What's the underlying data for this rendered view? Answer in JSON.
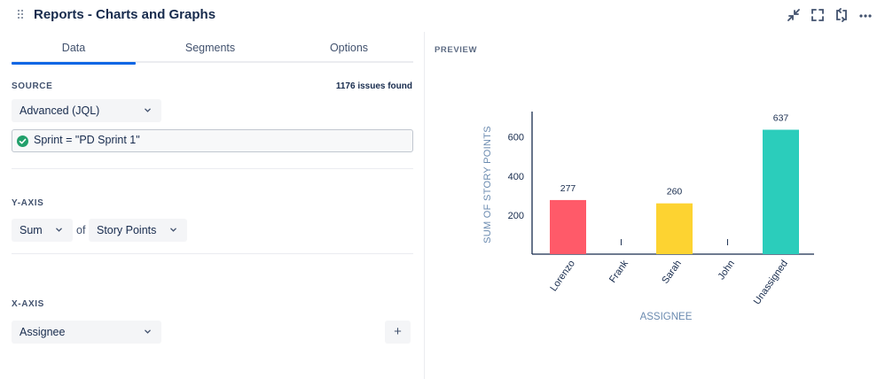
{
  "header": {
    "title": "Reports - Charts and Graphs",
    "icons": [
      "collapse-icon",
      "fullscreen-icon",
      "refresh-icon",
      "more-icon"
    ]
  },
  "tabs": [
    {
      "label": "Data",
      "active": true
    },
    {
      "label": "Segments",
      "active": false
    },
    {
      "label": "Options",
      "active": false
    }
  ],
  "source": {
    "label": "SOURCE",
    "issues_found": "1176 issues found",
    "selected": "Advanced (JQL)",
    "jql": "Sprint = \"PD Sprint 1\""
  },
  "y_axis": {
    "label": "Y-AXIS",
    "aggregate": "Sum",
    "of_text": "of",
    "field": "Story Points"
  },
  "x_axis": {
    "label": "X-AXIS",
    "field": "Assignee",
    "add_button": "+"
  },
  "preview": {
    "label": "PREVIEW"
  },
  "colors": {
    "accent": "#0c66e4",
    "check": "#22a06b",
    "axis_text": "#6b8bb0"
  },
  "chart_data": {
    "type": "bar",
    "categories": [
      "Lorenzo",
      "Frank",
      "Sarah",
      "John",
      "Unassigned"
    ],
    "values": [
      277,
      1,
      260,
      1,
      637
    ],
    "data_labels": [
      "277",
      "I",
      "260",
      "I",
      "637"
    ],
    "colors": [
      "#ff5a69",
      "#ff5a69",
      "#fdd331",
      "#2bcdbb",
      "#2bcdbb"
    ],
    "xlabel": "ASSIGNEE",
    "ylabel": "SUM OF STORY POINTS",
    "yticks": [
      200,
      400,
      600
    ],
    "ylim": [
      0,
      730
    ],
    "grid": false
  }
}
